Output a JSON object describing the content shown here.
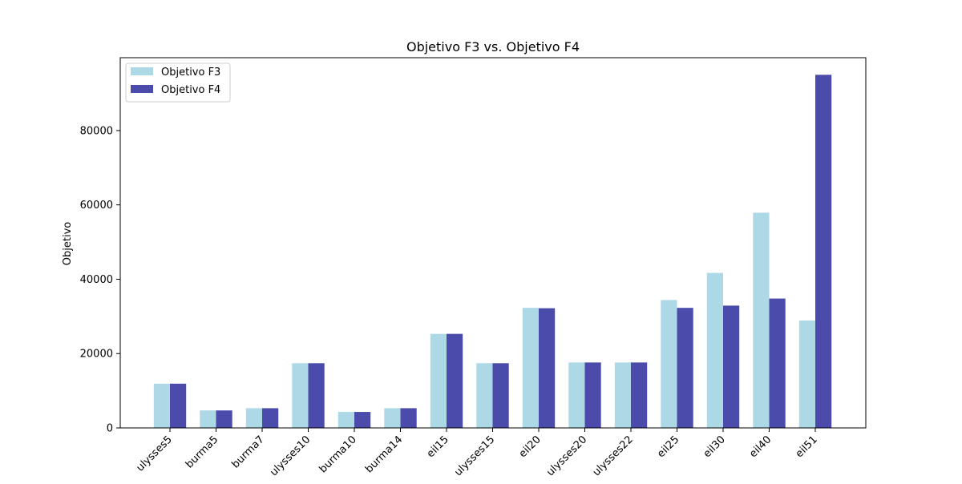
{
  "chart_data": {
    "type": "bar",
    "title": "Objetivo F3 vs. Objetivo F4",
    "xlabel": "",
    "ylabel": "Objetivo",
    "categories": [
      "ulysses5",
      "burma5",
      "burma7",
      "ulysses10",
      "burma10",
      "burma14",
      "eil15",
      "ulysses15",
      "eil20",
      "ulysses20",
      "ulysses22",
      "eil25",
      "eil30",
      "eil40",
      "eil51"
    ],
    "series": [
      {
        "name": "Objetivo F3",
        "color": "#add8e6",
        "values": [
          11900,
          4700,
          5300,
          17400,
          4300,
          5300,
          25300,
          17400,
          32300,
          17600,
          17600,
          34400,
          41700,
          57900,
          28900
        ]
      },
      {
        "name": "Objetivo F4",
        "color": "#4b4bab",
        "values": [
          11900,
          4700,
          5300,
          17400,
          4300,
          5300,
          25300,
          17400,
          32200,
          17600,
          17600,
          32300,
          32900,
          34800,
          95000
        ]
      }
    ],
    "ylim": [
      0,
      99600
    ],
    "yticks": [
      0,
      20000,
      40000,
      60000,
      80000
    ],
    "ytick_labels": [
      "0",
      "20000",
      "40000",
      "60000",
      "80000"
    ],
    "grid": false,
    "legend_position": "top-left"
  }
}
